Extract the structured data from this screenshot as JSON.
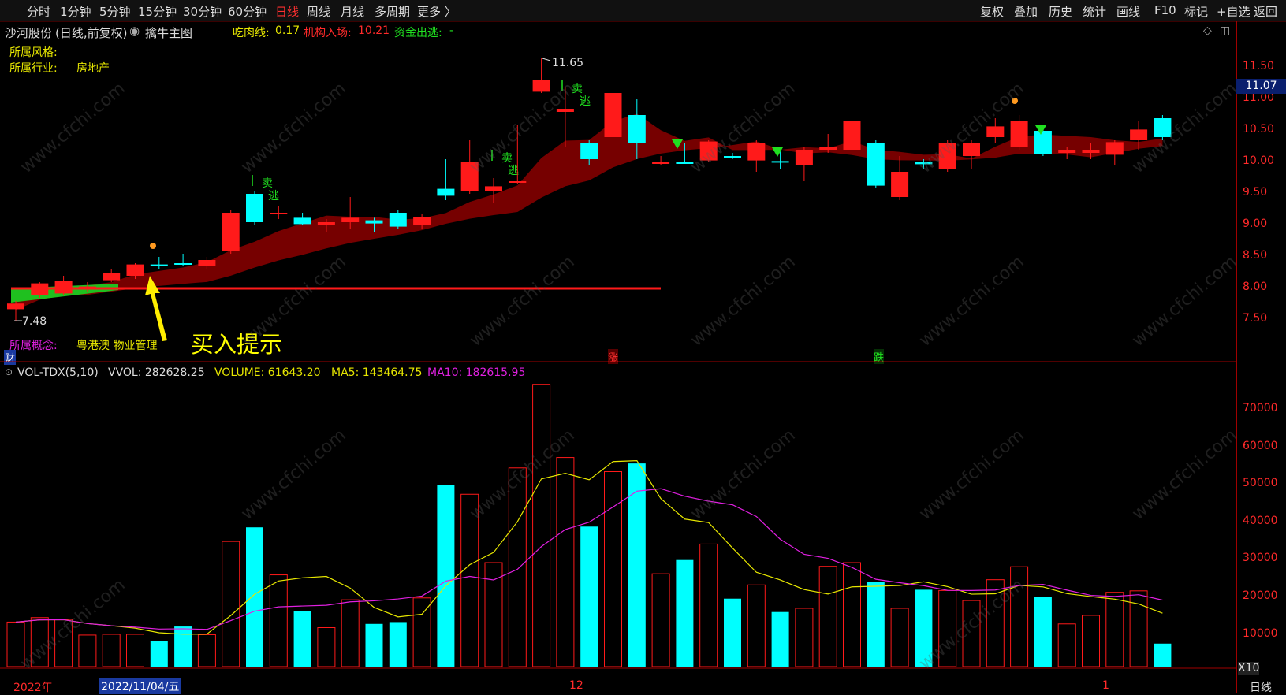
{
  "toolbar": {
    "periods": [
      "分时",
      "1分钟",
      "5分钟",
      "15分钟",
      "30分钟",
      "60分钟",
      "日线",
      "周线",
      "月线",
      "多周期",
      "更多 〉"
    ],
    "active_period": "日线",
    "right_buttons": [
      "复权",
      "叠加",
      "历史",
      "统计",
      "画线",
      "F10",
      "标记",
      "+自选",
      "返回"
    ]
  },
  "chart_header": {
    "stock": "沙河股份",
    "mode": "(日线,前复权)",
    "indicator_icon": "circle-arrow-icon",
    "indicator": "擒牛主图",
    "line1_label": "吃肉线:",
    "line1_value": "0.17",
    "line2_label": "机构入场:",
    "line2_value": "10.21",
    "line3_label": "资金出逃:",
    "line3_value": "-"
  },
  "info": {
    "style_label": "所属风格:",
    "industry_label": "所属行业:",
    "industry_value": "房地产",
    "concept_label": "所属概念:",
    "concept_value": "粤港澳 物业管理",
    "cai_marker": "财"
  },
  "annotations": {
    "buy_hint": "买入提示",
    "high_label": "11.65",
    "low_label": "7.48",
    "sell_text": "卖",
    "escape_text": "逃",
    "rise_marker": "涨",
    "fall_marker": "跌"
  },
  "price_axis": {
    "ticks": [
      "11.50",
      "11.00",
      "10.50",
      "10.00",
      "9.50",
      "9.00",
      "8.50",
      "8.00",
      "7.50"
    ],
    "current": "11.07"
  },
  "volume_header": {
    "name": "VOL-TDX(5,10)",
    "vvol": "VVOL: 282628.25",
    "volume": "VOLUME: 61643.20",
    "ma5": "MA5: 143464.75",
    "ma10": "MA10: 182615.95"
  },
  "volume_axis": {
    "ticks": [
      "70000",
      "60000",
      "50000",
      "40000",
      "30000",
      "20000",
      "10000"
    ],
    "unit": "X10"
  },
  "date_axis": {
    "year": "2022年",
    "cursor_date": "2022/11/04/五",
    "month_12": "12",
    "month_1": "1",
    "period_label": "日线"
  },
  "watermark": "www.cfchi.com",
  "colors": {
    "up": "#ff1a1a",
    "down": "#00ffff",
    "ma5": "#e6e600",
    "ma10": "#e020e0",
    "band": "#8b0000"
  },
  "chart_data": {
    "type": "candlestick",
    "candles": [
      {
        "o": 7.67,
        "c": 7.76,
        "h": 7.8,
        "l": 7.48,
        "v": 12000,
        "dir": "up"
      },
      {
        "o": 7.9,
        "c": 8.08,
        "h": 8.1,
        "l": 7.85,
        "v": 13200,
        "dir": "up"
      },
      {
        "o": 7.92,
        "c": 8.12,
        "h": 8.2,
        "l": 7.9,
        "v": 12700,
        "dir": "up"
      },
      {
        "o": 8.0,
        "c": 8.03,
        "h": 8.1,
        "l": 7.95,
        "v": 8500,
        "dir": "up"
      },
      {
        "o": 8.13,
        "c": 8.25,
        "h": 8.3,
        "l": 8.1,
        "v": 8700,
        "dir": "up"
      },
      {
        "o": 8.2,
        "c": 8.38,
        "h": 8.4,
        "l": 8.15,
        "v": 8700,
        "dir": "up"
      },
      {
        "o": 8.38,
        "c": 8.35,
        "h": 8.5,
        "l": 8.3,
        "v": 7000,
        "dir": "down"
      },
      {
        "o": 8.4,
        "c": 8.4,
        "h": 8.55,
        "l": 8.35,
        "v": 10800,
        "dir": "down"
      },
      {
        "o": 8.35,
        "c": 8.45,
        "h": 8.5,
        "l": 8.3,
        "v": 8600,
        "dir": "up"
      },
      {
        "o": 8.6,
        "c": 9.2,
        "h": 9.25,
        "l": 8.55,
        "v": 33700,
        "dir": "up"
      },
      {
        "o": 9.5,
        "c": 9.05,
        "h": 9.55,
        "l": 9.0,
        "v": 37500,
        "dir": "down"
      },
      {
        "o": 9.2,
        "c": 9.2,
        "h": 9.3,
        "l": 9.1,
        "v": 24700,
        "dir": "up"
      },
      {
        "o": 9.12,
        "c": 9.02,
        "h": 9.2,
        "l": 9.0,
        "v": 15000,
        "dir": "down"
      },
      {
        "o": 9.0,
        "c": 9.05,
        "h": 9.1,
        "l": 8.9,
        "v": 10500,
        "dir": "up"
      },
      {
        "o": 9.05,
        "c": 9.12,
        "h": 9.45,
        "l": 8.95,
        "v": 18000,
        "dir": "up"
      },
      {
        "o": 9.08,
        "c": 9.03,
        "h": 9.12,
        "l": 8.9,
        "v": 11500,
        "dir": "down"
      },
      {
        "o": 9.2,
        "c": 8.98,
        "h": 9.25,
        "l": 8.95,
        "v": 12000,
        "dir": "down"
      },
      {
        "o": 9.0,
        "c": 9.13,
        "h": 9.18,
        "l": 8.95,
        "v": 18500,
        "dir": "up"
      },
      {
        "o": 9.58,
        "c": 9.47,
        "h": 10.05,
        "l": 9.4,
        "v": 48800,
        "dir": "down"
      },
      {
        "o": 9.55,
        "c": 10.0,
        "h": 10.35,
        "l": 9.5,
        "v": 46400,
        "dir": "up"
      },
      {
        "o": 9.55,
        "c": 9.62,
        "h": 9.75,
        "l": 9.35,
        "v": 28000,
        "dir": "up"
      },
      {
        "o": 9.7,
        "c": 9.7,
        "h": 10.6,
        "l": 9.65,
        "v": 53500,
        "dir": "up"
      },
      {
        "o": 11.12,
        "c": 11.3,
        "h": 11.65,
        "l": 11.1,
        "v": 76000,
        "dir": "up"
      },
      {
        "o": 10.8,
        "c": 10.85,
        "h": 11.2,
        "l": 10.25,
        "v": 56300,
        "dir": "up"
      },
      {
        "o": 10.3,
        "c": 10.05,
        "h": 10.35,
        "l": 9.95,
        "v": 37700,
        "dir": "down"
      },
      {
        "o": 10.4,
        "c": 11.1,
        "h": 11.12,
        "l": 10.35,
        "v": 52500,
        "dir": "up"
      },
      {
        "o": 10.75,
        "c": 10.3,
        "h": 11.0,
        "l": 10.05,
        "v": 54700,
        "dir": "down"
      },
      {
        "o": 10.0,
        "c": 10.0,
        "h": 10.1,
        "l": 9.95,
        "v": 25000,
        "dir": "up"
      },
      {
        "o": 10.0,
        "c": 10.0,
        "h": 10.3,
        "l": 9.98,
        "v": 28700,
        "dir": "down"
      },
      {
        "o": 10.03,
        "c": 10.33,
        "h": 10.35,
        "l": 10.0,
        "v": 33000,
        "dir": "up"
      },
      {
        "o": 10.1,
        "c": 10.1,
        "h": 10.15,
        "l": 10.05,
        "v": 18300,
        "dir": "down"
      },
      {
        "o": 10.03,
        "c": 10.3,
        "h": 10.35,
        "l": 9.85,
        "v": 22000,
        "dir": "up"
      },
      {
        "o": 10.02,
        "c": 10.02,
        "h": 10.25,
        "l": 9.9,
        "v": 14700,
        "dir": "down"
      },
      {
        "o": 9.95,
        "c": 10.2,
        "h": 10.25,
        "l": 9.7,
        "v": 15700,
        "dir": "up"
      },
      {
        "o": 10.2,
        "c": 10.25,
        "h": 10.45,
        "l": 10.15,
        "v": 27000,
        "dir": "up"
      },
      {
        "o": 10.2,
        "c": 10.65,
        "h": 10.7,
        "l": 10.15,
        "v": 28000,
        "dir": "up"
      },
      {
        "o": 10.3,
        "c": 9.63,
        "h": 10.35,
        "l": 9.6,
        "v": 22800,
        "dir": "down"
      },
      {
        "o": 9.45,
        "c": 9.85,
        "h": 10.1,
        "l": 9.4,
        "v": 15700,
        "dir": "up"
      },
      {
        "o": 10.0,
        "c": 9.97,
        "h": 10.05,
        "l": 9.9,
        "v": 20700,
        "dir": "down"
      },
      {
        "o": 9.9,
        "c": 10.3,
        "h": 10.35,
        "l": 9.85,
        "v": 20500,
        "dir": "up"
      },
      {
        "o": 10.1,
        "c": 10.3,
        "h": 10.35,
        "l": 9.9,
        "v": 17800,
        "dir": "up"
      },
      {
        "o": 10.4,
        "c": 10.57,
        "h": 10.7,
        "l": 10.3,
        "v": 23400,
        "dir": "up"
      },
      {
        "o": 10.25,
        "c": 10.65,
        "h": 10.75,
        "l": 10.2,
        "v": 26900,
        "dir": "up"
      },
      {
        "o": 10.5,
        "c": 10.13,
        "h": 10.55,
        "l": 10.1,
        "v": 18700,
        "dir": "down"
      },
      {
        "o": 10.15,
        "c": 10.2,
        "h": 10.25,
        "l": 10.05,
        "v": 11500,
        "dir": "up"
      },
      {
        "o": 10.15,
        "c": 10.2,
        "h": 10.3,
        "l": 10.05,
        "v": 13800,
        "dir": "up"
      },
      {
        "o": 10.12,
        "c": 10.32,
        "h": 10.35,
        "l": 9.95,
        "v": 20000,
        "dir": "up"
      },
      {
        "o": 10.35,
        "c": 10.52,
        "h": 10.65,
        "l": 10.2,
        "v": 20400,
        "dir": "up"
      },
      {
        "o": 10.7,
        "c": 10.4,
        "h": 10.75,
        "l": 10.35,
        "v": 6200,
        "dir": "down"
      }
    ]
  }
}
